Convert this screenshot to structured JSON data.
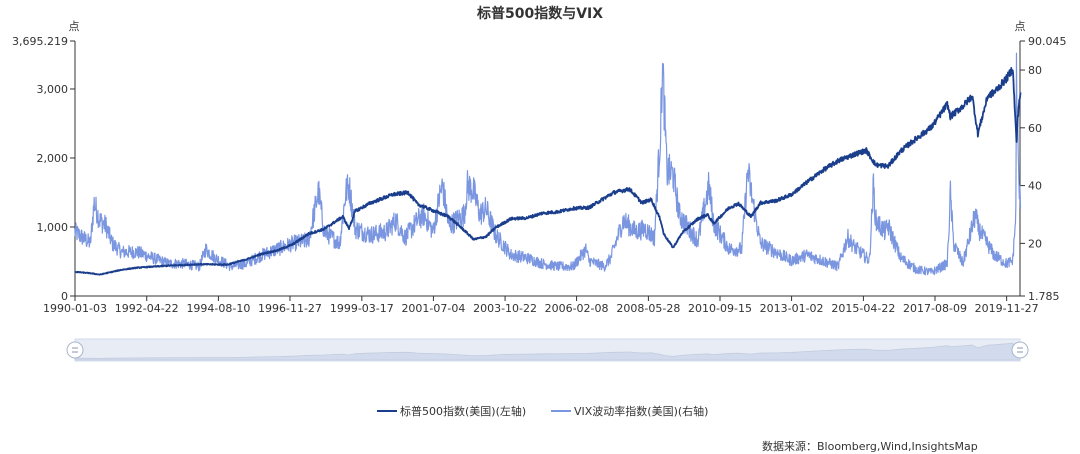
{
  "chart_data": {
    "type": "line",
    "title": "标普500指数与VIX",
    "x_ticks": [
      "1990-01-03",
      "1992-04-22",
      "1994-08-10",
      "1996-11-27",
      "1999-03-17",
      "2001-07-04",
      "2003-10-22",
      "2006-02-08",
      "2008-05-28",
      "2010-09-15",
      "2013-01-02",
      "2015-04-22",
      "2017-08-09",
      "2019-11-27"
    ],
    "x_range": [
      "1990-01-03",
      "2020-05-01"
    ],
    "left_axis": {
      "unit": "点",
      "min": 0,
      "max": 3695.219,
      "ticks": [
        0,
        1000,
        2000,
        3000
      ],
      "tick_labels": [
        "0",
        "1,000",
        "2,000",
        "3,000"
      ],
      "max_label": "3,695.219"
    },
    "right_axis": {
      "unit": "点",
      "min": 1.785,
      "max": 90.045,
      "ticks": [
        20,
        40,
        60,
        80
      ],
      "tick_labels": [
        "20",
        "40",
        "60",
        "80"
      ],
      "min_label": "1.785",
      "max_label": "90.045"
    },
    "series": [
      {
        "name": "标普500指数(美国)(左轴)",
        "axis": "left",
        "color": "#1a3e8c",
        "x": [
          1990.0,
          1990.5,
          1990.8,
          1991.0,
          1991.5,
          1992.0,
          1993.0,
          1994.0,
          1994.9,
          1995.5,
          1996.0,
          1996.5,
          1997.0,
          1997.5,
          1998.0,
          1998.6,
          1998.8,
          1999.0,
          1999.5,
          2000.2,
          2000.7,
          2001.0,
          2001.7,
          2002.0,
          2002.5,
          2002.8,
          2003.2,
          2003.5,
          2004.0,
          2004.5,
          2005.0,
          2005.5,
          2006.0,
          2006.5,
          2007.0,
          2007.3,
          2007.8,
          2008.2,
          2008.5,
          2008.8,
          2008.9,
          2009.2,
          2009.5,
          2010.0,
          2010.3,
          2010.5,
          2011.0,
          2011.3,
          2011.7,
          2012.0,
          2012.5,
          2013.0,
          2013.5,
          2014.0,
          2014.5,
          2015.0,
          2015.4,
          2015.7,
          2016.1,
          2016.5,
          2017.0,
          2017.5,
          2018.0,
          2018.1,
          2018.5,
          2018.8,
          2018.98,
          2019.3,
          2019.5,
          2019.9,
          2020.1,
          2020.22,
          2020.25,
          2020.3,
          2020.35
        ],
        "values": [
          350,
          330,
          310,
          330,
          380,
          410,
          440,
          460,
          455,
          530,
          610,
          660,
          750,
          900,
          970,
          1150,
          980,
          1230,
          1350,
          1470,
          1500,
          1330,
          1200,
          1150,
          950,
          820,
          860,
          990,
          1120,
          1130,
          1200,
          1220,
          1270,
          1280,
          1420,
          1500,
          1550,
          1350,
          1400,
          1100,
          900,
          700,
          920,
          1120,
          1180,
          1050,
          1280,
          1340,
          1150,
          1350,
          1380,
          1470,
          1650,
          1820,
          1960,
          2050,
          2110,
          1900,
          1880,
          2100,
          2280,
          2450,
          2780,
          2600,
          2750,
          2900,
          2350,
          2900,
          2950,
          3150,
          3300,
          2240,
          2500,
          2800,
          2950
        ]
      },
      {
        "name": "VIX波动率指数(美国)(右轴)",
        "axis": "right",
        "color": "#7b96e0",
        "x": [
          1990.0,
          1990.5,
          1990.62,
          1990.8,
          1991.0,
          1991.2,
          1991.5,
          1992.0,
          1992.5,
          1993.0,
          1993.5,
          1994.0,
          1994.2,
          1994.5,
          1995.0,
          1995.5,
          1996.0,
          1996.5,
          1997.0,
          1997.5,
          1997.82,
          1998.0,
          1998.5,
          1998.7,
          1998.8,
          1999.0,
          1999.5,
          2000.0,
          2000.3,
          2000.6,
          2001.0,
          2001.2,
          2001.5,
          2001.7,
          2001.8,
          2002.0,
          2002.5,
          2002.6,
          2002.8,
          2003.0,
          2003.2,
          2003.5,
          2004.0,
          2004.5,
          2005.0,
          2005.5,
          2006.0,
          2006.4,
          2006.5,
          2007.0,
          2007.2,
          2007.6,
          2008.0,
          2008.3,
          2008.6,
          2008.8,
          2008.85,
          2008.9,
          2009.0,
          2009.2,
          2009.4,
          2009.7,
          2010.0,
          2010.35,
          2010.5,
          2011.0,
          2011.4,
          2011.6,
          2011.7,
          2012.0,
          2012.5,
          2013.0,
          2013.5,
          2014.0,
          2014.5,
          2014.8,
          2015.0,
          2015.5,
          2015.63,
          2015.7,
          2016.0,
          2016.1,
          2016.5,
          2017.0,
          2017.5,
          2018.0,
          2018.1,
          2018.2,
          2018.5,
          2018.9,
          2019.0,
          2019.5,
          2019.9,
          2020.1,
          2020.2,
          2020.22,
          2020.25,
          2020.3,
          2020.35
        ],
        "values": [
          24,
          20,
          34,
          28,
          26,
          20,
          17,
          17,
          15,
          13,
          13,
          12,
          18,
          15,
          12,
          13,
          16,
          18,
          20,
          21,
          38,
          24,
          20,
          38,
          40,
          25,
          23,
          24,
          28,
          22,
          28,
          30,
          24,
          36,
          40,
          26,
          30,
          40,
          38,
          30,
          32,
          23,
          16,
          15,
          13,
          12,
          12,
          18,
          14,
          12,
          15,
          28,
          24,
          25,
          22,
          60,
          80,
          72,
          45,
          44,
          30,
          25,
          21,
          40,
          27,
          18,
          18,
          45,
          38,
          20,
          17,
          14,
          16,
          14,
          12,
          22,
          19,
          14,
          40,
          28,
          24,
          26,
          15,
          11,
          10,
          13,
          37,
          20,
          13,
          30,
          25,
          16,
          13,
          14,
          30,
          82,
          60,
          40,
          32
        ]
      }
    ],
    "grid": false,
    "legend_position": "bottom-center",
    "data_zoom_slider": true
  },
  "source_text": "数据来源：Bloomberg,Wind,InsightsMap"
}
